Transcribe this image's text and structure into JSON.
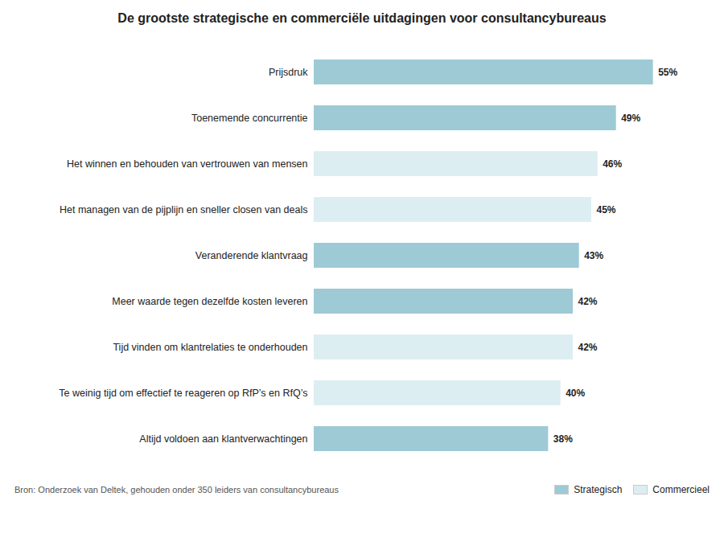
{
  "chart_data": {
    "type": "bar",
    "orientation": "horizontal",
    "title": "De grootste strategische en commerciële uitdagingen voor consultancybureaus",
    "caption": "Bron: Onderzoek van Deltek, gehouden onder 350 leiders van consultancybureaus",
    "categories": [
      "Prijsdruk",
      "Toenemende concurrentie",
      "Het winnen en behouden van vertrouwen van mensen",
      "Het managen van de pijplijn en sneller closen van deals",
      "Veranderende klantvraag",
      "Meer waarde tegen dezelfde kosten leveren",
      "Tijd vinden om klantrelaties te onderhouden",
      "Te weinig tijd om effectief te reageren op RfP’s en RfQ’s",
      "Altijd voldoen aan klantverwachtingen"
    ],
    "values": [
      55,
      49,
      46,
      45,
      43,
      42,
      42,
      40,
      38
    ],
    "value_labels": [
      "55%",
      "49%",
      "46%",
      "45%",
      "43%",
      "42%",
      "42%",
      "40%",
      "38%"
    ],
    "colors": [
      "#9dcad4",
      "#9dcad4",
      "#ddeef2",
      "#ddeef2",
      "#9dcad4",
      "#9dcad4",
      "#ddeef2",
      "#ddeef2",
      "#9dcad4"
    ],
    "data_labels": true,
    "xlim": [
      0,
      60
    ],
    "tick_labels": "y",
    "grid": false,
    "legend": "bottom right",
    "legend_entries": [
      {
        "name": "Strategisch",
        "color": "#9dcad4"
      },
      {
        "name": "Commercieel",
        "color": "#ddeef2"
      }
    ]
  }
}
